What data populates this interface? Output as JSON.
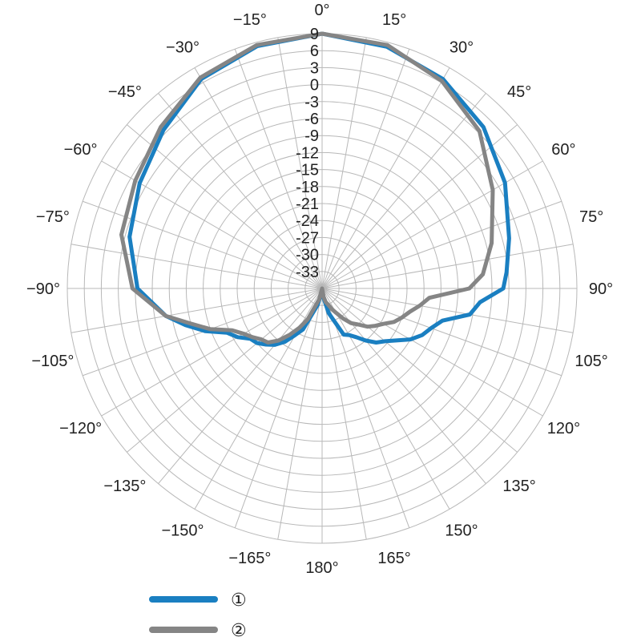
{
  "chart_data": {
    "type": "polar-line",
    "title": "",
    "angle_labels": [
      "0°",
      "15°",
      "30°",
      "45°",
      "60°",
      "75°",
      "90°",
      "105°",
      "120°",
      "135°",
      "150°",
      "165°",
      "180°",
      "−165°",
      "−150°",
      "−135°",
      "−120°",
      "−105°",
      "−90°",
      "−75°",
      "−60°",
      "−45°",
      "−30°",
      "−15°"
    ],
    "angles_deg": [
      0,
      15,
      30,
      45,
      60,
      75,
      90,
      105,
      120,
      135,
      150,
      165,
      180,
      -165,
      -150,
      -135,
      -120,
      -105,
      -90,
      -75,
      -60,
      -45,
      -30,
      -15
    ],
    "radial_ticks": [
      9,
      6,
      3,
      0,
      -3,
      -6,
      -9,
      -12,
      -15,
      -18,
      -21,
      -24,
      -27,
      -30,
      -33
    ],
    "rlim": [
      -36,
      9
    ],
    "grid": true,
    "legend_position": "bottom-left",
    "series": [
      {
        "name": "①",
        "color": "#1a7fc1",
        "angles": [
          0,
          15,
          30,
          45,
          60,
          75,
          85,
          90,
          95,
          100,
          105,
          110,
          115,
          120,
          125,
          130,
          135,
          140,
          145,
          150,
          155,
          160,
          165,
          170,
          180,
          -165,
          -155,
          -150,
          -145,
          -140,
          -135,
          -130,
          -125,
          -120,
          -115,
          -110,
          -105,
          -100,
          -90,
          -75,
          -60,
          -45,
          -30,
          -15,
          0
        ],
        "values": [
          9,
          8.2,
          6.7,
          4.3,
          1.3,
          -1.8,
          -3.3,
          -4,
          -8,
          -9.5,
          -14,
          -15.5,
          -16.5,
          -18,
          -20,
          -21.5,
          -22.5,
          -24,
          -25.5,
          -26.5,
          -27,
          -30,
          -31.5,
          -34,
          -35.5,
          -33,
          -28,
          -26.5,
          -24.5,
          -23,
          -22,
          -21,
          -20.5,
          -18.8,
          -17.5,
          -14,
          -11,
          -8,
          -3.4,
          -0.8,
          1.2,
          3.6,
          6.7,
          8.3,
          9
        ]
      },
      {
        "name": "②",
        "color": "#858585",
        "angles": [
          0,
          15,
          30,
          45,
          60,
          75,
          85,
          90,
          95,
          100,
          105,
          110,
          115,
          120,
          125,
          130,
          135,
          140,
          145,
          150,
          155,
          160,
          165,
          170,
          180,
          -165,
          -155,
          -150,
          -145,
          -140,
          -135,
          -130,
          -125,
          -120,
          -115,
          -110,
          -105,
          -100,
          -90,
          -75,
          -60,
          -45,
          -30,
          -15,
          0
        ],
        "values": [
          9,
          8.5,
          6.3,
          3.3,
          -1.2,
          -5,
          -7.5,
          -10,
          -17,
          -18.5,
          -20,
          -21,
          -22,
          -23.5,
          -24.5,
          -25.5,
          -27,
          -28,
          -29.5,
          -31,
          -32,
          -33,
          -33.5,
          -34.5,
          -36,
          -34,
          -30,
          -28,
          -26,
          -24,
          -22.5,
          -22,
          -21,
          -20,
          -18.5,
          -15,
          -12,
          -8,
          -2.5,
          0.7,
          2.1,
          4.3,
          7,
          8.5,
          9
        ]
      }
    ]
  }
}
